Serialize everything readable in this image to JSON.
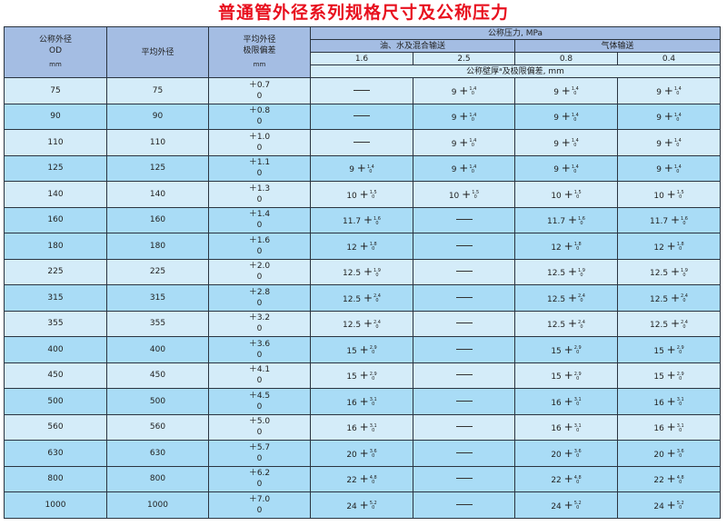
{
  "title": "普通管外径系列规格尺寸及公称压力",
  "header": {
    "od": "公称外径",
    "od_sub": "OD",
    "od_unit": "mm",
    "mean_od": "平均外径",
    "tol": "平均外径",
    "tol_sub": "极限偏差",
    "tol_unit": "mm",
    "pressure": "公称压力, MPa",
    "group_oil": "油、水及混合输送",
    "group_gas": "气体输送",
    "p": [
      "1.6",
      "2.5",
      "0.8",
      "0.4"
    ],
    "wall": "公称壁厚ᵃ及极限偏差, mm"
  },
  "rows": [
    {
      "od": "75",
      "mean": "75",
      "tol": "+0.7",
      "tol_low": "0",
      "c": [
        null,
        [
          "9",
          "1.4",
          "0"
        ],
        [
          "9",
          "1.4",
          "0"
        ],
        [
          "9",
          "1.4",
          "0"
        ]
      ]
    },
    {
      "od": "90",
      "mean": "90",
      "tol": "+0.8",
      "tol_low": "0",
      "c": [
        null,
        [
          "9",
          "1.4",
          "0"
        ],
        [
          "9",
          "1.4",
          "0"
        ],
        [
          "9",
          "1.4",
          "0"
        ]
      ]
    },
    {
      "od": "110",
      "mean": "110",
      "tol": "+1.0",
      "tol_low": "0",
      "c": [
        null,
        [
          "9",
          "1.4",
          "0"
        ],
        [
          "9",
          "1.4",
          "0"
        ],
        [
          "9",
          "1.4",
          "0"
        ]
      ]
    },
    {
      "od": "125",
      "mean": "125",
      "tol": "+1.1",
      "tol_low": "0",
      "c": [
        [
          "9",
          "1.4",
          "0"
        ],
        [
          "9",
          "1.4",
          "0"
        ],
        [
          "9",
          "1.4",
          "0"
        ],
        [
          "9",
          "1.4",
          "0"
        ]
      ]
    },
    {
      "od": "140",
      "mean": "140",
      "tol": "+1.3",
      "tol_low": "0",
      "c": [
        [
          "10",
          "1.5",
          "0"
        ],
        [
          "10",
          "1.5",
          "0"
        ],
        [
          "10",
          "1.5",
          "0"
        ],
        [
          "10",
          "1.5",
          "0"
        ]
      ]
    },
    {
      "od": "160",
      "mean": "160",
      "tol": "+1.4",
      "tol_low": "0",
      "c": [
        [
          "11.7",
          "1.6",
          "0"
        ],
        null,
        [
          "11.7",
          "1.6",
          "0"
        ],
        [
          "11.7",
          "1.6",
          "0"
        ]
      ]
    },
    {
      "od": "180",
      "mean": "180",
      "tol": "+1.6",
      "tol_low": "0",
      "c": [
        [
          "12",
          "1.8",
          "0"
        ],
        null,
        [
          "12",
          "1.8",
          "0"
        ],
        [
          "12",
          "1.8",
          "0"
        ]
      ]
    },
    {
      "od": "225",
      "mean": "225",
      "tol": "+2.0",
      "tol_low": "0",
      "c": [
        [
          "12.5",
          "1.9",
          "0"
        ],
        null,
        [
          "12.5",
          "1.9",
          "0"
        ],
        [
          "12.5",
          "1.9",
          "0"
        ]
      ]
    },
    {
      "od": "315",
      "mean": "315",
      "tol": "+2.8",
      "tol_low": "0",
      "c": [
        [
          "12.5",
          "2.4",
          "0"
        ],
        null,
        [
          "12.5",
          "2.4",
          "0"
        ],
        [
          "12.5",
          "2.4",
          "0"
        ]
      ]
    },
    {
      "od": "355",
      "mean": "355",
      "tol": "+3.2",
      "tol_low": "0",
      "c": [
        [
          "12.5",
          "2.4",
          "0"
        ],
        null,
        [
          "12.5",
          "2.4",
          "0"
        ],
        [
          "12.5",
          "2.4",
          "0"
        ]
      ]
    },
    {
      "od": "400",
      "mean": "400",
      "tol": "+3.6",
      "tol_low": "0",
      "c": [
        [
          "15",
          "2.9",
          "0"
        ],
        null,
        [
          "15",
          "2.9",
          "0"
        ],
        [
          "15",
          "2.9",
          "0"
        ]
      ]
    },
    {
      "od": "450",
      "mean": "450",
      "tol": "+4.1",
      "tol_low": "0",
      "c": [
        [
          "15",
          "2.9",
          "0"
        ],
        null,
        [
          "15",
          "2.9",
          "0"
        ],
        [
          "15",
          "2.9",
          "0"
        ]
      ]
    },
    {
      "od": "500",
      "mean": "500",
      "tol": "+4.5",
      "tol_low": "0",
      "c": [
        [
          "16",
          "3.1",
          "0"
        ],
        null,
        [
          "16",
          "3.1",
          "0"
        ],
        [
          "16",
          "3.1",
          "0"
        ]
      ]
    },
    {
      "od": "560",
      "mean": "560",
      "tol": "+5.0",
      "tol_low": "0",
      "c": [
        [
          "16",
          "3.1",
          "0"
        ],
        null,
        [
          "16",
          "3.1",
          "0"
        ],
        [
          "16",
          "3.1",
          "0"
        ]
      ]
    },
    {
      "od": "630",
      "mean": "630",
      "tol": "+5.7",
      "tol_low": "0",
      "c": [
        [
          "20",
          "3.6",
          "0"
        ],
        null,
        [
          "20",
          "3.6",
          "0"
        ],
        [
          "20",
          "3.6",
          "0"
        ]
      ]
    },
    {
      "od": "800",
      "mean": "800",
      "tol": "+6.2",
      "tol_low": "0",
      "c": [
        [
          "22",
          "4.8",
          "0"
        ],
        null,
        [
          "22",
          "4.8",
          "0"
        ],
        [
          "22",
          "4.8",
          "0"
        ]
      ]
    },
    {
      "od": "1000",
      "mean": "1000",
      "tol": "+7.0",
      "tol_low": "0",
      "c": [
        [
          "24",
          "5.2",
          "0"
        ],
        null,
        [
          "24",
          "5.2",
          "0"
        ],
        [
          "24",
          "5.2",
          "0"
        ]
      ]
    }
  ],
  "row_shades": [
    "l",
    "d",
    "l",
    "d",
    "l",
    "d",
    "d",
    "l",
    "d",
    "l",
    "d",
    "l",
    "d",
    "l",
    "d",
    "d",
    "d"
  ],
  "colors": {
    "title": "#e8101e",
    "header": "#a4bde3",
    "row_light": "#d4ecf9",
    "row_dark": "#a9dcf6"
  }
}
